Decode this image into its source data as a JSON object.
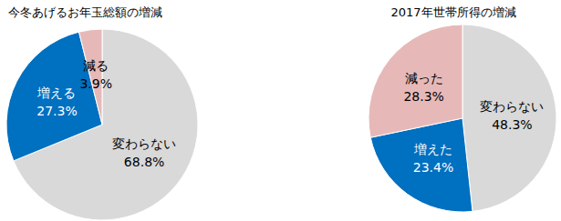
{
  "chart_data": [
    {
      "type": "pie",
      "title": "今冬あげるお年玉総額の増減",
      "categories": [
        "変わらない",
        "増える",
        "減る"
      ],
      "values": [
        68.8,
        27.3,
        3.9
      ],
      "value_labels": [
        "68.8%",
        "27.3%",
        "3.9%"
      ],
      "colors": [
        "#d9d9d9",
        "#0070c0",
        "#e6b9b8"
      ],
      "data_labels": true
    },
    {
      "type": "pie",
      "title": "2017年世帯所得の増減",
      "categories": [
        "変わらない",
        "増えた",
        "減った"
      ],
      "values": [
        48.3,
        23.4,
        28.3
      ],
      "value_labels": [
        "48.3%",
        "23.4%",
        "28.3%"
      ],
      "colors": [
        "#d9d9d9",
        "#0070c0",
        "#e6b9b8"
      ],
      "data_labels": true
    }
  ]
}
